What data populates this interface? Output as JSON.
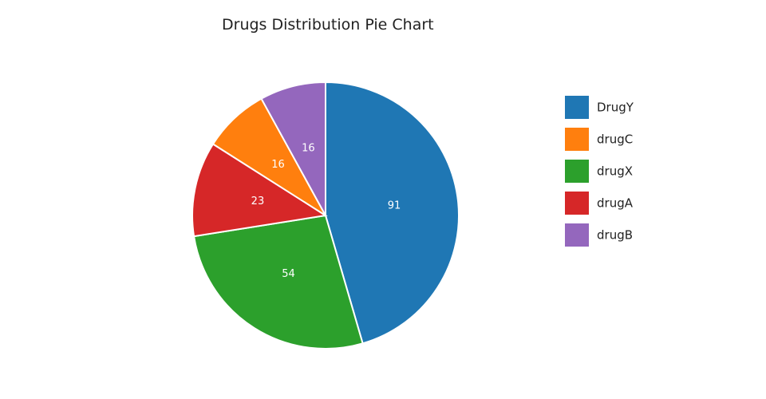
{
  "chart_data": {
    "type": "pie",
    "title": "Drugs Distribution Pie Chart",
    "categories": [
      "DrugY",
      "drugX",
      "drugA",
      "drugC",
      "drugB"
    ],
    "values": [
      91,
      54,
      23,
      16,
      16
    ],
    "colors": [
      "#1f77b4",
      "#2ca02c",
      "#d62728",
      "#ff7f0e",
      "#9467bd"
    ],
    "label_color": "#ffffff",
    "direction": "clockwise",
    "legend": {
      "position": "right",
      "order": [
        "DrugY",
        "drugC",
        "drugX",
        "drugA",
        "drugB"
      ]
    }
  }
}
